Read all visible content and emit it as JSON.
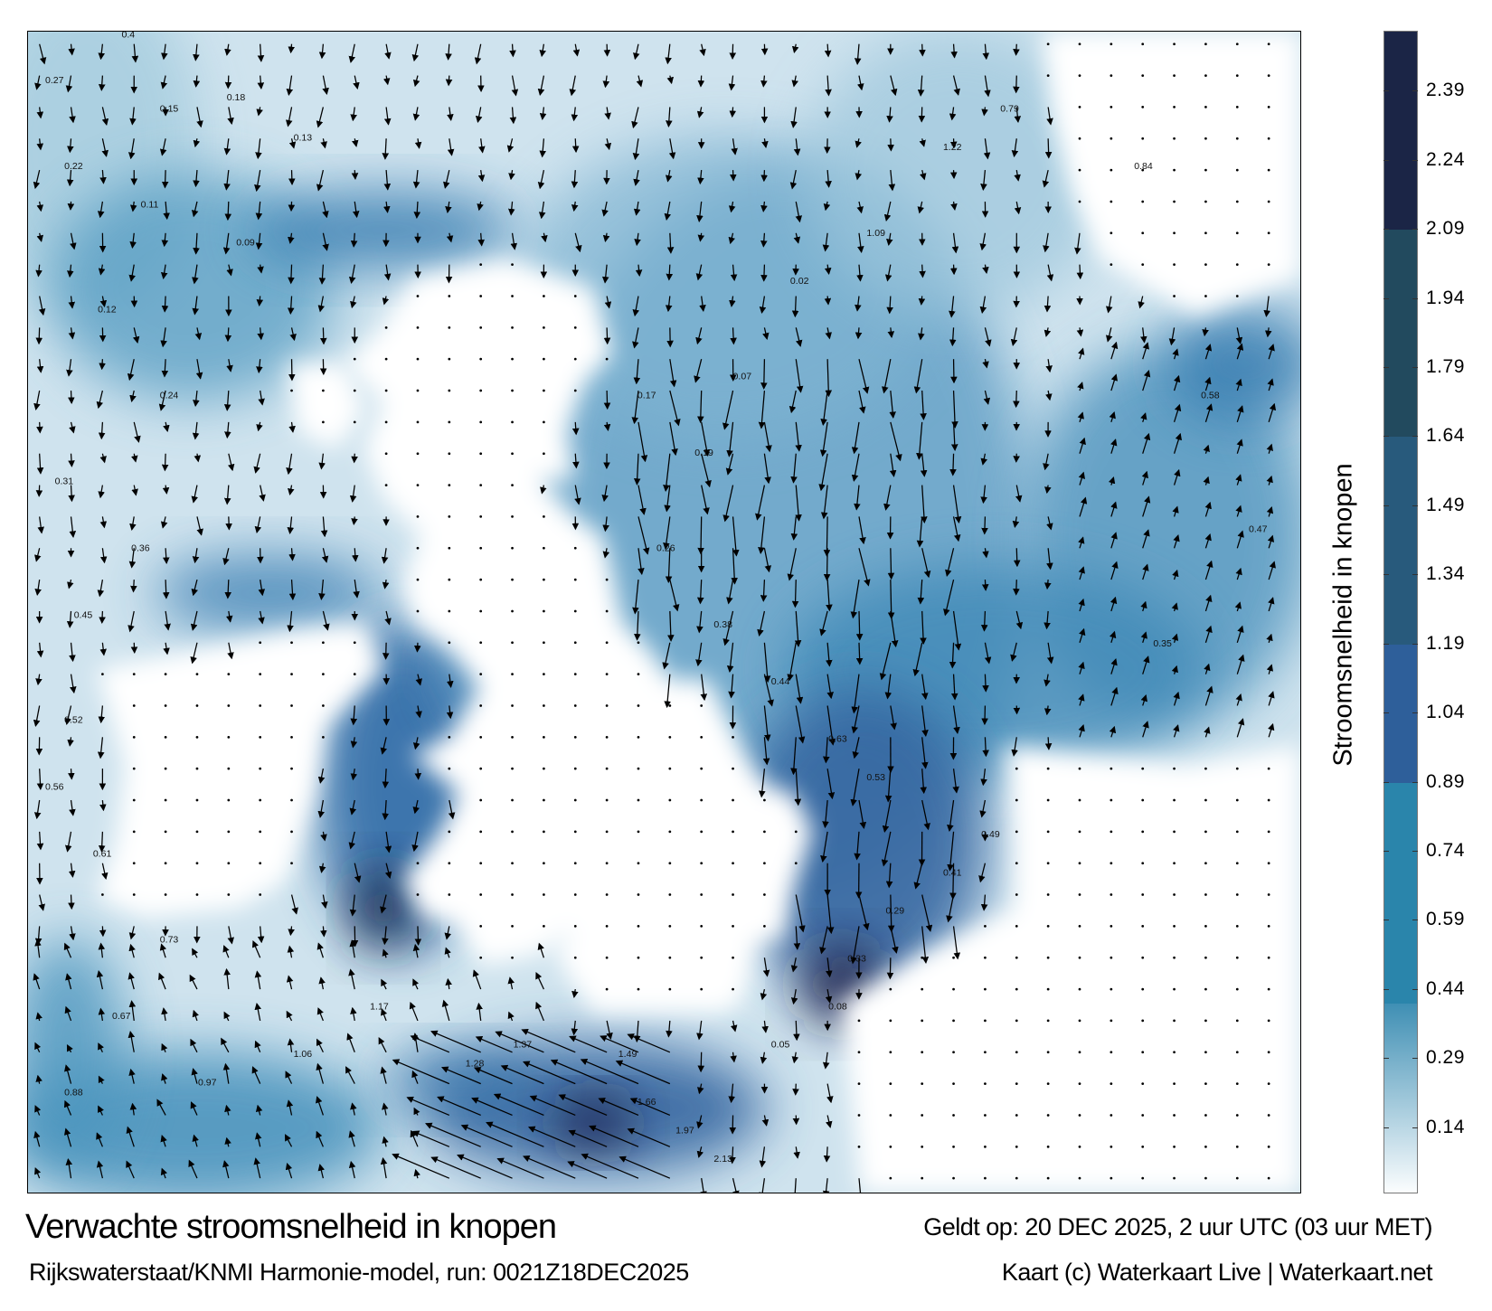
{
  "map": {
    "title": "Verwachte stroomsnelheid in knopen",
    "valid_time": "Geldt op: 20 DEC 2025, 2 uur UTC (03 uur MET)",
    "source": "Rijkswaterstaat/KNMI Harmonie-model, run: 0021Z18DEC2025",
    "credit": "Kaart (c) Waterkaart Live | Waterkaart.net",
    "sample_labels": [
      "0.4",
      "0.27",
      "0.15",
      "0.22",
      "0.18",
      "0.13",
      "0.11",
      "0.09",
      "0.12",
      "0.24",
      "0.31",
      "0.36",
      "0.45",
      "0.52",
      "0.56",
      "0.61",
      "0.73",
      "0.67",
      "0.88",
      "0.97",
      "1.06",
      "1.17",
      "1.28",
      "1.37",
      "1.49",
      "1.66",
      "1.97",
      "2.13",
      "0.05",
      "0.08",
      "0.33",
      "0.29",
      "0.41",
      "0.49",
      "0.53",
      "0.63",
      "0.44",
      "0.38",
      "0.26",
      "0.19",
      "0.17",
      "0.07",
      "0.02",
      "1.09",
      "1.22",
      "0.79",
      "0.84",
      "0.58",
      "0.47",
      "0.35"
    ]
  },
  "colorbar": {
    "label": "Stroomsnelheid in knopen",
    "ticks": [
      "2.39",
      "2.24",
      "2.09",
      "1.94",
      "1.79",
      "1.64",
      "1.49",
      "1.34",
      "1.19",
      "1.04",
      "0.89",
      "0.74",
      "0.59",
      "0.44",
      "0.29",
      "0.14"
    ],
    "range": [
      0,
      2.52
    ],
    "bands": [
      {
        "from": 2.09,
        "to": 2.52,
        "color": "#1b2546"
      },
      {
        "from": 1.64,
        "to": 2.09,
        "color": "#224a5e"
      },
      {
        "from": 1.19,
        "to": 1.64,
        "color": "#285a7c"
      },
      {
        "from": 0.89,
        "to": 1.19,
        "color": "#2e5f9a"
      },
      {
        "from": 0.41,
        "to": 0.89,
        "color": "#2a85ab"
      },
      {
        "from": 0,
        "to": 0.41,
        "color": "#9cc5d8"
      }
    ]
  }
}
